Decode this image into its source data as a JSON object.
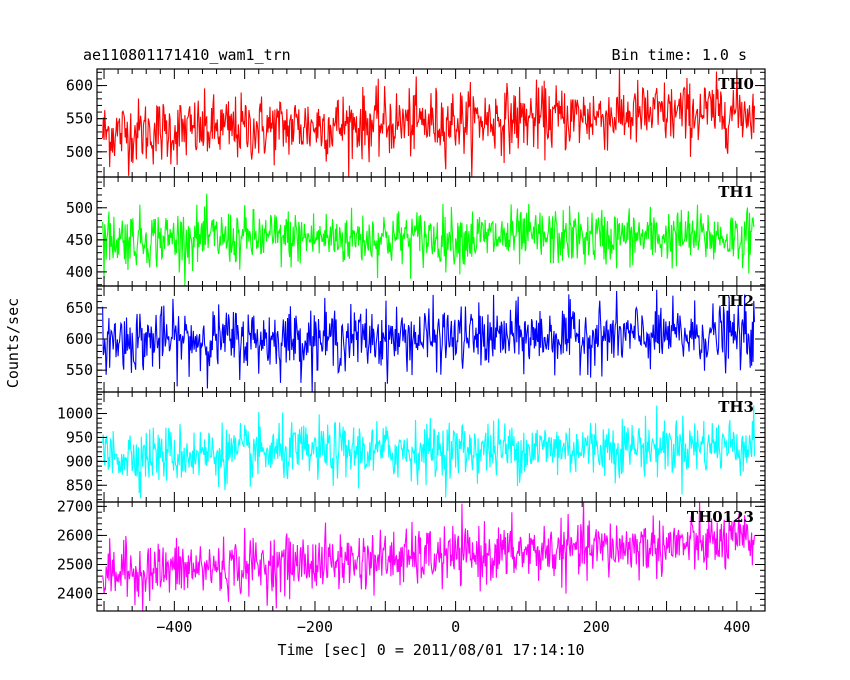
{
  "chart_data": {
    "type": "line",
    "title_left": "ae110801171410_wam1_trn",
    "title_right": "Bin time: 1.0 s",
    "xlabel": "Time [sec] 0 = 2011/08/01 17:14:10",
    "ylabel": "Counts/sec",
    "xlim": [
      -510,
      440
    ],
    "x_data_range": [
      -502,
      425
    ],
    "x_ticks": [
      -400,
      -200,
      0,
      200,
      400
    ],
    "x_tick_labels": [
      "−400",
      "−200",
      "0",
      "200",
      "400"
    ],
    "panels": [
      {
        "name": "TH0",
        "color": "#ff0000",
        "ylim": [
          462,
          625
        ],
        "yticks": [
          500,
          550,
          600
        ],
        "mean_start": 528,
        "mean_end": 562,
        "noise": 25,
        "min": 462,
        "max": 625
      },
      {
        "name": "TH1",
        "color": "#00ff00",
        "ylim": [
          378,
          548
        ],
        "yticks": [
          400,
          450,
          500
        ],
        "mean_start": 452,
        "mean_end": 455,
        "noise": 22,
        "min": 378,
        "max": 548
      },
      {
        "name": "TH2",
        "color": "#0000ff",
        "ylim": [
          515,
          685
        ],
        "yticks": [
          550,
          600,
          650
        ],
        "mean_start": 598,
        "mean_end": 606,
        "noise": 25,
        "min": 515,
        "max": 685
      },
      {
        "name": "TH3",
        "color": "#00ffff",
        "ylim": [
          815,
          1045
        ],
        "yticks": [
          850,
          900,
          950,
          1000
        ],
        "mean_start": 912,
        "mean_end": 935,
        "noise": 30,
        "min": 815,
        "max": 1045
      },
      {
        "name": "TH0123",
        "color": "#ff00ff",
        "ylim": [
          2340,
          2715
        ],
        "yticks": [
          2400,
          2500,
          2600,
          2700
        ],
        "mean_start": 2470,
        "mean_end": 2580,
        "noise": 50,
        "min": 2340,
        "max": 2715
      }
    ]
  }
}
